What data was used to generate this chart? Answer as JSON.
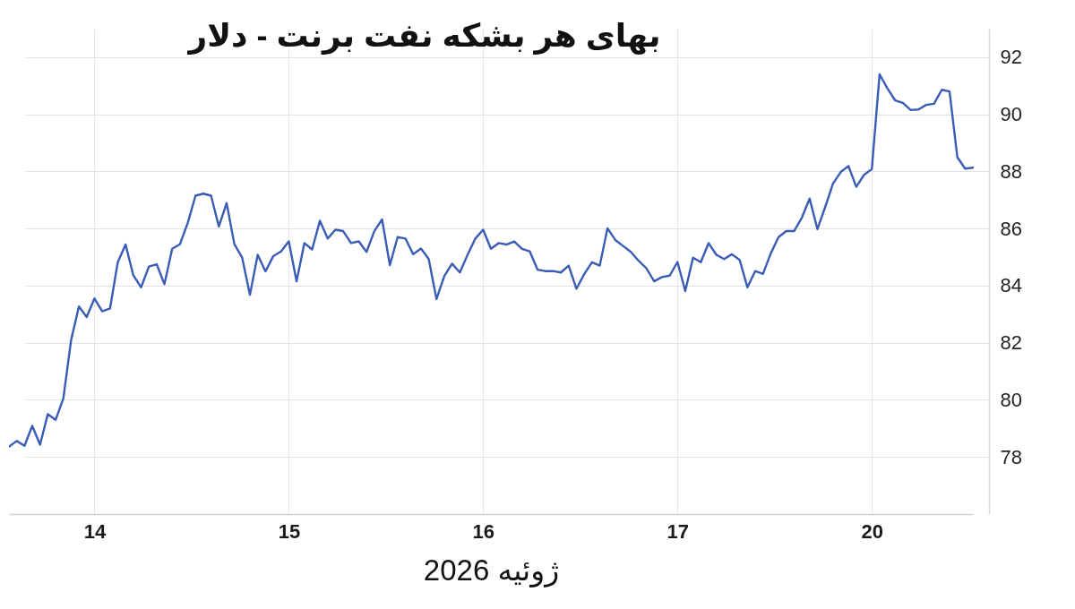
{
  "chart_data": {
    "type": "line",
    "title": "بهای هر بشکه نفت برنت - دلار",
    "xlabel": "ژوئیه 2026",
    "color": "#3a5cb4",
    "grid": true,
    "ylim": [
      76,
      93
    ],
    "yticks": [
      78,
      80,
      82,
      84,
      86,
      88,
      90,
      92
    ],
    "categories": [
      null,
      null,
      null,
      null,
      null,
      null,
      null,
      null,
      null,
      null,
      null,
      "14",
      null,
      null,
      null,
      null,
      null,
      null,
      null,
      null,
      null,
      null,
      null,
      null,
      null,
      null,
      null,
      null,
      null,
      null,
      null,
      null,
      null,
      null,
      null,
      null,
      "15",
      null,
      null,
      null,
      null,
      null,
      null,
      null,
      null,
      null,
      null,
      null,
      null,
      null,
      null,
      null,
      null,
      null,
      null,
      null,
      null,
      null,
      null,
      null,
      null,
      "16",
      null,
      null,
      null,
      null,
      null,
      null,
      null,
      null,
      null,
      null,
      null,
      null,
      null,
      null,
      null,
      null,
      null,
      null,
      null,
      null,
      null,
      null,
      null,
      null,
      "17",
      null,
      null,
      null,
      null,
      null,
      null,
      null,
      null,
      null,
      null,
      null,
      null,
      null,
      null,
      null,
      null,
      null,
      null,
      null,
      null,
      null,
      null,
      null,
      null,
      "20",
      null,
      null,
      null,
      null,
      null,
      null,
      null,
      null,
      null,
      null,
      null,
      null,
      null
    ],
    "values": [
      78.36,
      78.56,
      78.39,
      79.09,
      78.43,
      79.5,
      79.3,
      80.05,
      82.1,
      83.27,
      82.9,
      83.55,
      83.1,
      83.2,
      84.82,
      85.44,
      84.36,
      83.94,
      84.67,
      84.75,
      84.05,
      85.29,
      85.45,
      86.2,
      87.15,
      87.22,
      87.15,
      86.07,
      86.89,
      85.45,
      84.98,
      83.68,
      85.08,
      84.5,
      85.03,
      85.2,
      85.55,
      84.15,
      85.49,
      85.27,
      86.27,
      85.65,
      85.96,
      85.91,
      85.49,
      85.55,
      85.18,
      85.91,
      86.32,
      84.72,
      85.7,
      85.65,
      85.1,
      85.3,
      84.93,
      83.53,
      84.33,
      84.77,
      84.46,
      85.08,
      85.65,
      85.96,
      85.29,
      85.49,
      85.44,
      85.55,
      85.29,
      85.2,
      84.56,
      84.51,
      84.51,
      84.46,
      84.7,
      83.89,
      84.4,
      84.82,
      84.7,
      86.01,
      85.6,
      85.39,
      85.18,
      84.87,
      84.61,
      84.15,
      84.3,
      84.35,
      84.83,
      83.81,
      84.98,
      84.82,
      85.49,
      85.08,
      84.93,
      85.1,
      84.9,
      83.94,
      84.51,
      84.41,
      85.13,
      85.7,
      85.91,
      85.91,
      86.38,
      87.05,
      85.98,
      86.75,
      87.57,
      87.98,
      88.19,
      87.46,
      87.88,
      88.08,
      91.4,
      90.91,
      90.49,
      90.4,
      90.15,
      90.17,
      90.33,
      90.37,
      90.86,
      90.8,
      88.5,
      88.1,
      88.13
    ]
  }
}
